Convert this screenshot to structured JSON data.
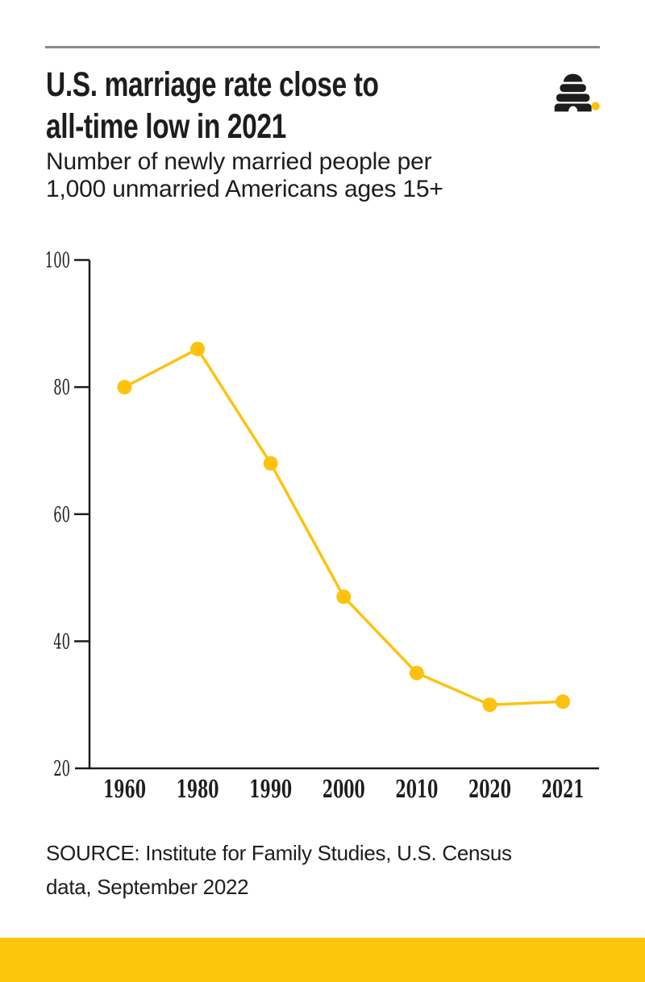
{
  "header": {
    "divider_color": "#8a8a8a",
    "title_lines": [
      "U.S. marriage rate close to",
      "all-time low in 2021"
    ],
    "subtitle_lines": [
      "Number of newly married people per",
      "1,000 unmarried Americans ages 15+"
    ],
    "logo": {
      "name": "deseret-news-beehive",
      "beehive_color": "#1d1d1d",
      "dot_color": "#FEC20E"
    }
  },
  "chart_data": {
    "type": "line",
    "title": "U.S. marriage rate close to all-time low in 2021",
    "subtitle": "Number of newly married people per 1,000 unmarried Americans ages 15+",
    "categories": [
      "1960",
      "1980",
      "1990",
      "2000",
      "2010",
      "2020",
      "2021"
    ],
    "values": [
      80,
      86,
      68,
      47,
      35,
      30,
      30.5
    ],
    "series_name": "Newly married people per 1,000 unmarried Americans ages 15+",
    "ylim": [
      20,
      100
    ],
    "yticks": [
      100,
      80,
      60,
      40,
      20
    ],
    "xlabel": "",
    "ylabel": "",
    "grid": false,
    "legend": "none",
    "marker": "circle",
    "line_color": "#FEC20E",
    "axis_color": "#1d1d1d"
  },
  "source": {
    "lines": [
      "SOURCE: Institute for Family Studies, U.S. Census",
      "data, September 2022"
    ]
  },
  "footer": {
    "color": "#FEC60B"
  }
}
